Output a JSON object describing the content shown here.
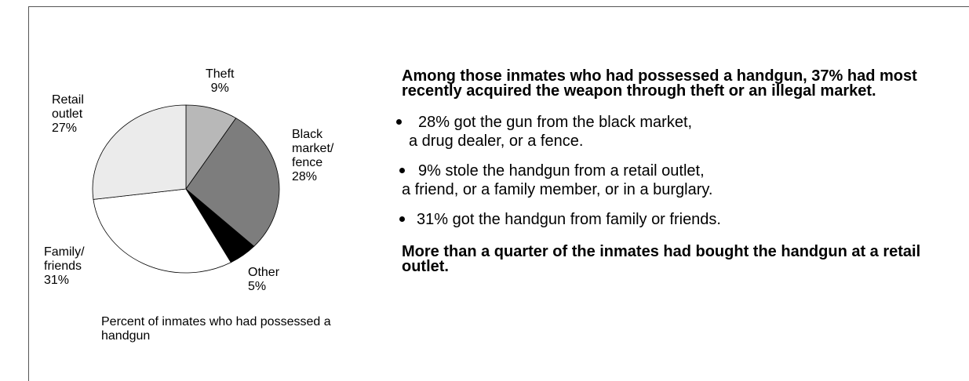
{
  "chart_data": {
    "type": "pie",
    "caption": "Percent of inmates who had possessed a handgun",
    "slices": [
      {
        "label": "Theft",
        "value": 9,
        "value_label": "9%",
        "color": "#b8b8b8"
      },
      {
        "label": "Black market/ fence",
        "value": 28,
        "value_label": "28%",
        "color": "#7d7d7d"
      },
      {
        "label": "Other",
        "value": 5,
        "value_label": "5%",
        "color": "#000000"
      },
      {
        "label": "Family/ friends",
        "value": 31,
        "value_label": "31%",
        "color": "#ffffff"
      },
      {
        "label": "Retail outlet",
        "value": 27,
        "value_label": "27%",
        "color": "#ebebeb"
      }
    ]
  },
  "text": {
    "heading_top": "Among those inmates who had possessed a handgun, 37% had most recently acquired the weapon through theft or an illegal market.",
    "bullets": [
      {
        "line1": "28% got the gun from the black market,",
        "line2": "a drug dealer, or a fence."
      },
      {
        "line1": "9% stole the handgun from a retail outlet,",
        "line2": "a friend, or a family member, or in a burglary."
      },
      {
        "line1": "31% got the handgun from family or friends.",
        "line2": ""
      }
    ],
    "heading_bottom": "More than a quarter of the inmates had bought the handgun at a retail outlet."
  },
  "labels": {
    "theft": "Theft\n9%",
    "black_market": "Black\nmarket/\nfence\n 28%",
    "other": "Other\n  5%",
    "family": "Family/\nfriends\n31%",
    "retail": "Retail\noutlet\n  27%"
  }
}
